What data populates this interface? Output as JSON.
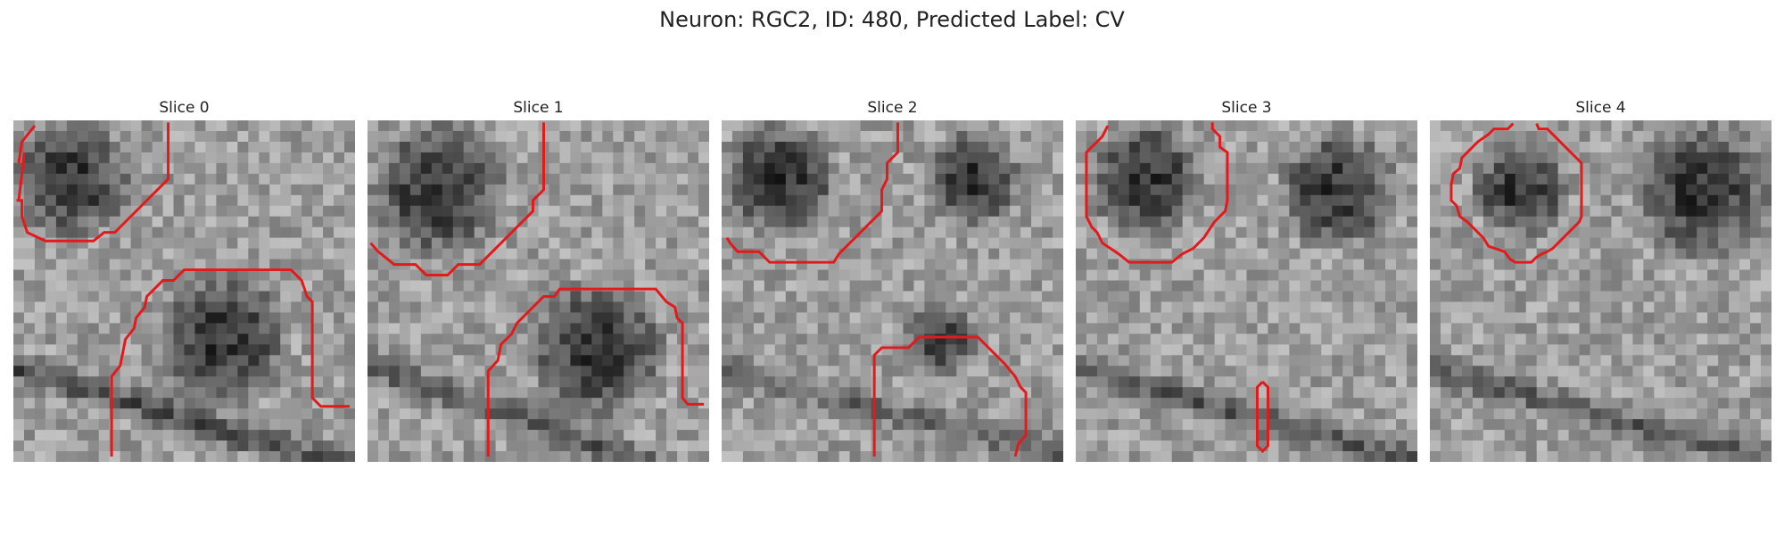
{
  "figure": {
    "title": "Neuron: RGC2, ID: 480, Predicted Label: CV"
  },
  "colors": {
    "contour": "#e31a1c",
    "colormap": "grayscale"
  },
  "panels": [
    {
      "label": "Slice 0"
    },
    {
      "label": "Slice 1"
    },
    {
      "label": "Slice 2"
    },
    {
      "label": "Slice 3"
    },
    {
      "label": "Slice 4"
    }
  ]
}
